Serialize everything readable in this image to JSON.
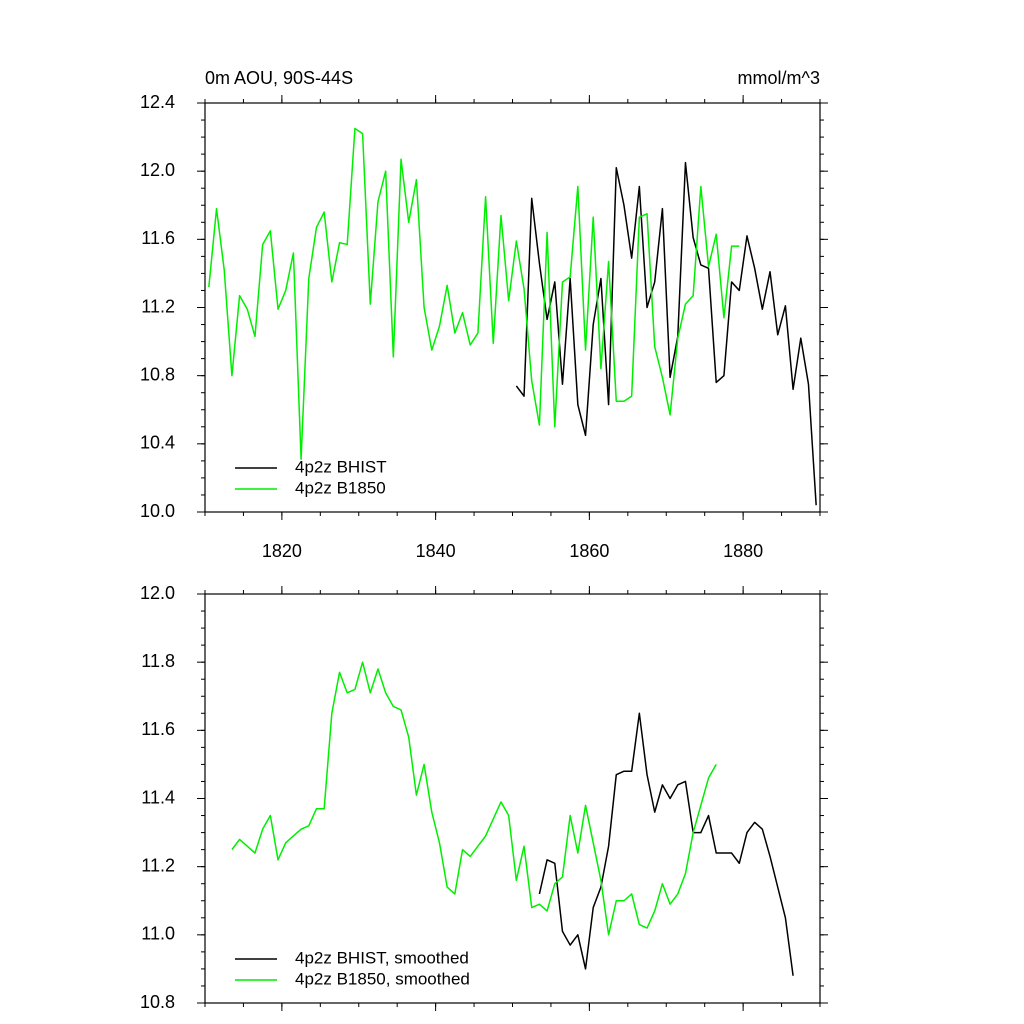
{
  "chart_data": [
    {
      "type": "line",
      "title": "0m AOU, 90S-44S",
      "units": "mmol/m^3",
      "xlim": [
        1810,
        1890
      ],
      "xticks": [
        1820,
        1840,
        1860,
        1880
      ],
      "ylim": [
        10.0,
        12.4
      ],
      "yticks": [
        {
          "value": 10.0,
          "label": "10.0"
        },
        10.4,
        10.8,
        11.2,
        11.6,
        {
          "value": 12.0,
          "label": "12.0"
        },
        12.4
      ],
      "legend": "lower left",
      "series": [
        {
          "name": "4p2z BHIST",
          "color": "#000000",
          "x": [
            1850.5,
            1851.5,
            1852.5,
            1853.5,
            1854.5,
            1855.5,
            1856.5,
            1857.5,
            1858.5,
            1859.5,
            1860.5,
            1861.5,
            1862.5,
            1863.5,
            1864.5,
            1865.5,
            1866.5,
            1867.5,
            1868.5,
            1869.5,
            1870.5,
            1871.5,
            1872.5,
            1873.5,
            1874.5,
            1875.5,
            1876.5,
            1877.5,
            1878.5,
            1879.5,
            1880.5,
            1881.5,
            1882.5,
            1883.5,
            1884.5,
            1885.5,
            1886.5,
            1887.5,
            1888.5,
            1889.5
          ],
          "values": [
            10.74,
            10.68,
            11.84,
            11.46,
            11.13,
            11.35,
            10.75,
            11.37,
            10.63,
            10.45,
            11.1,
            11.37,
            10.63,
            12.02,
            11.8,
            11.49,
            11.91,
            11.2,
            11.35,
            11.78,
            10.79,
            11.03,
            12.05,
            11.61,
            11.45,
            11.43,
            10.76,
            10.8,
            11.35,
            11.3,
            11.62,
            11.43,
            11.19,
            11.41,
            11.04,
            11.21,
            10.72,
            11.02,
            10.75,
            10.04
          ]
        },
        {
          "name": "4p2z B1850",
          "color": "#00ee00",
          "x": [
            1810.5,
            1811.5,
            1812.5,
            1813.5,
            1814.5,
            1815.5,
            1816.5,
            1817.5,
            1818.5,
            1819.5,
            1820.5,
            1821.5,
            1822.5,
            1823.5,
            1824.5,
            1825.5,
            1826.5,
            1827.5,
            1828.5,
            1829.5,
            1830.5,
            1831.5,
            1832.5,
            1833.5,
            1834.5,
            1835.5,
            1836.5,
            1837.5,
            1838.5,
            1839.5,
            1840.5,
            1841.5,
            1842.5,
            1843.5,
            1844.5,
            1845.5,
            1846.5,
            1847.5,
            1848.5,
            1849.5,
            1850.5,
            1851.5,
            1852.5,
            1853.5,
            1854.5,
            1855.5,
            1856.5,
            1857.5,
            1858.5,
            1859.5,
            1860.5,
            1861.5,
            1862.5,
            1863.5,
            1864.5,
            1865.5,
            1866.5,
            1867.5,
            1868.5,
            1869.5,
            1870.5,
            1871.5,
            1872.5,
            1873.5,
            1874.5,
            1875.5,
            1876.5,
            1877.5,
            1878.5,
            1879.5
          ],
          "values": [
            11.32,
            11.78,
            11.42,
            10.8,
            11.27,
            11.19,
            11.03,
            11.57,
            11.65,
            11.19,
            11.3,
            11.52,
            10.31,
            11.37,
            11.67,
            11.76,
            11.35,
            11.58,
            11.57,
            12.25,
            12.22,
            11.22,
            11.82,
            12.0,
            10.91,
            12.07,
            11.7,
            11.95,
            11.2,
            10.95,
            11.09,
            11.33,
            11.05,
            11.17,
            10.98,
            11.05,
            11.85,
            10.99,
            11.74,
            11.24,
            11.59,
            11.31,
            10.77,
            10.51,
            11.64,
            10.5,
            11.35,
            11.38,
            11.91,
            10.95,
            11.73,
            10.84,
            11.47,
            10.65,
            10.65,
            10.68,
            11.73,
            11.75,
            10.97,
            10.79,
            10.57,
            11.02,
            11.22,
            11.27,
            11.91,
            11.44,
            11.63,
            11.14,
            11.56,
            11.56
          ]
        }
      ]
    },
    {
      "type": "line",
      "xlim": [
        1810,
        1890
      ],
      "xticks": [
        1820,
        1840,
        1860,
        1880
      ],
      "xtick_labels": false,
      "ylim": [
        10.8,
        12.0
      ],
      "yticks": [
        10.8,
        {
          "value": 11.0,
          "label": "11.0"
        },
        11.2,
        11.4,
        11.6,
        11.8,
        {
          "value": 12.0,
          "label": "12.0"
        }
      ],
      "legend": "lower left",
      "series": [
        {
          "name": "4p2z BHIST, smoothed",
          "color": "#000000",
          "x": [
            1853.5,
            1854.5,
            1855.5,
            1856.5,
            1857.5,
            1858.5,
            1859.5,
            1860.5,
            1861.5,
            1862.5,
            1863.5,
            1864.5,
            1865.5,
            1866.5,
            1867.5,
            1868.5,
            1869.5,
            1870.5,
            1871.5,
            1872.5,
            1873.5,
            1874.5,
            1875.5,
            1876.5,
            1877.5,
            1878.5,
            1879.5,
            1880.5,
            1881.5,
            1882.5,
            1883.5,
            1884.5,
            1885.5,
            1886.5
          ],
          "values": [
            11.12,
            11.22,
            11.21,
            11.01,
            10.97,
            11.0,
            10.9,
            11.08,
            11.14,
            11.26,
            11.47,
            11.48,
            11.48,
            11.65,
            11.47,
            11.36,
            11.44,
            11.4,
            11.44,
            11.45,
            11.3,
            11.3,
            11.35,
            11.24,
            11.24,
            11.24,
            11.21,
            11.3,
            11.33,
            11.31,
            11.23,
            11.14,
            11.05,
            10.88
          ]
        },
        {
          "name": "4p2z B1850, smoothed",
          "color": "#00ee00",
          "x": [
            1813.5,
            1814.5,
            1815.5,
            1816.5,
            1817.5,
            1818.5,
            1819.5,
            1820.5,
            1821.5,
            1822.5,
            1823.5,
            1824.5,
            1825.5,
            1826.5,
            1827.5,
            1828.5,
            1829.5,
            1830.5,
            1831.5,
            1832.5,
            1833.5,
            1834.5,
            1835.5,
            1836.5,
            1837.5,
            1838.5,
            1839.5,
            1840.5,
            1841.5,
            1842.5,
            1843.5,
            1844.5,
            1845.5,
            1846.5,
            1847.5,
            1848.5,
            1849.5,
            1850.5,
            1851.5,
            1852.5,
            1853.5,
            1854.5,
            1855.5,
            1856.5,
            1857.5,
            1858.5,
            1859.5,
            1860.5,
            1861.5,
            1862.5,
            1863.5,
            1864.5,
            1865.5,
            1866.5,
            1867.5,
            1868.5,
            1869.5,
            1870.5,
            1871.5,
            1872.5,
            1873.5,
            1874.5,
            1875.5,
            1876.5
          ],
          "values": [
            11.25,
            11.28,
            11.26,
            11.24,
            11.31,
            11.35,
            11.22,
            11.27,
            11.29,
            11.31,
            11.32,
            11.37,
            11.37,
            11.65,
            11.77,
            11.71,
            11.72,
            11.8,
            11.71,
            11.78,
            11.71,
            11.67,
            11.66,
            11.58,
            11.41,
            11.5,
            11.36,
            11.27,
            11.14,
            11.12,
            11.25,
            11.23,
            11.26,
            11.29,
            11.34,
            11.39,
            11.35,
            11.16,
            11.26,
            11.08,
            11.09,
            11.07,
            11.15,
            11.17,
            11.35,
            11.24,
            11.38,
            11.27,
            11.16,
            11.0,
            11.1,
            11.1,
            11.12,
            11.03,
            11.02,
            11.07,
            11.15,
            11.09,
            11.12,
            11.18,
            11.3,
            11.38,
            11.46,
            11.5
          ]
        }
      ]
    }
  ]
}
